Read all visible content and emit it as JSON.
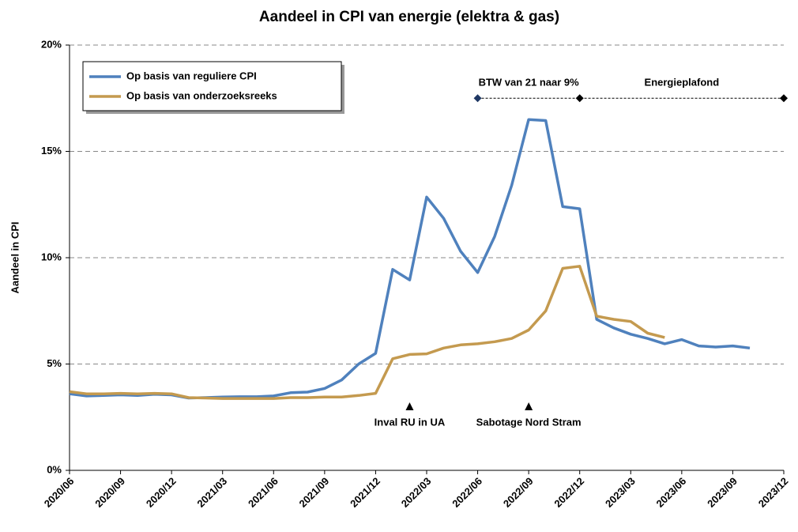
{
  "chart_data": {
    "type": "line",
    "title": "Aandeel in CPI van energie (elektra & gas)",
    "y_label": "Aandeel in CPI",
    "categories": [
      "2020/06",
      null,
      null,
      "2020/09",
      null,
      null,
      "2020/12",
      null,
      null,
      "2021/03",
      null,
      null,
      "2021/06",
      null,
      null,
      "2021/09",
      null,
      null,
      "2021/12",
      null,
      null,
      "2022/03",
      null,
      null,
      "2022/06",
      null,
      null,
      "2022/09",
      null,
      null,
      "2022/12",
      null,
      null,
      "2023/03",
      null,
      null,
      "2023/06",
      null,
      null,
      "2023/09",
      null,
      null,
      "2023/12"
    ],
    "ylim": [
      0,
      20
    ],
    "yticks": [
      {
        "value": 0,
        "label": "0%"
      },
      {
        "value": 5,
        "label": "5%"
      },
      {
        "value": 10,
        "label": "10%"
      },
      {
        "value": 15,
        "label": "15%"
      },
      {
        "value": 20,
        "label": "20%"
      }
    ],
    "grid": true,
    "legend": "top-left",
    "series": [
      {
        "name": "Op basis van reguliere CPI",
        "color": "#4f81bd",
        "values": [
          3.6,
          3.5,
          3.52,
          3.55,
          3.52,
          3.58,
          3.55,
          3.4,
          3.42,
          3.45,
          3.46,
          3.46,
          3.5,
          3.65,
          3.68,
          3.85,
          4.25,
          5.0,
          5.5,
          9.45,
          8.95,
          12.85,
          11.85,
          10.3,
          9.3,
          11.0,
          13.4,
          16.5,
          16.45,
          12.4,
          12.3,
          7.1,
          6.7,
          6.4,
          6.2,
          5.95,
          6.15,
          5.85,
          5.8,
          5.85,
          5.75,
          null,
          null
        ]
      },
      {
        "name": "Op basis van onderzoeksreeks",
        "color": "#c49a4f",
        "values": [
          3.7,
          3.6,
          3.6,
          3.62,
          3.6,
          3.62,
          3.6,
          3.42,
          3.4,
          3.38,
          3.38,
          3.38,
          3.38,
          3.42,
          3.42,
          3.45,
          3.45,
          3.52,
          3.62,
          5.25,
          5.45,
          5.48,
          5.75,
          5.9,
          5.95,
          6.05,
          6.2,
          6.6,
          7.5,
          9.5,
          9.6,
          7.25,
          7.1,
          7.0,
          6.45,
          6.25,
          null,
          null,
          null,
          null,
          null,
          null,
          null
        ]
      }
    ],
    "events": [
      {
        "x": "2022/02",
        "text": "Inval RU in UA"
      },
      {
        "x": "2022/09",
        "text": "Sabotage Nord Stram"
      }
    ],
    "periods": {
      "y": 17.5,
      "points": [
        "2022/06",
        "2022/12",
        "2023/12"
      ],
      "labels": [
        "BTW van 21 naar 9%",
        "Energieplafond"
      ]
    }
  }
}
